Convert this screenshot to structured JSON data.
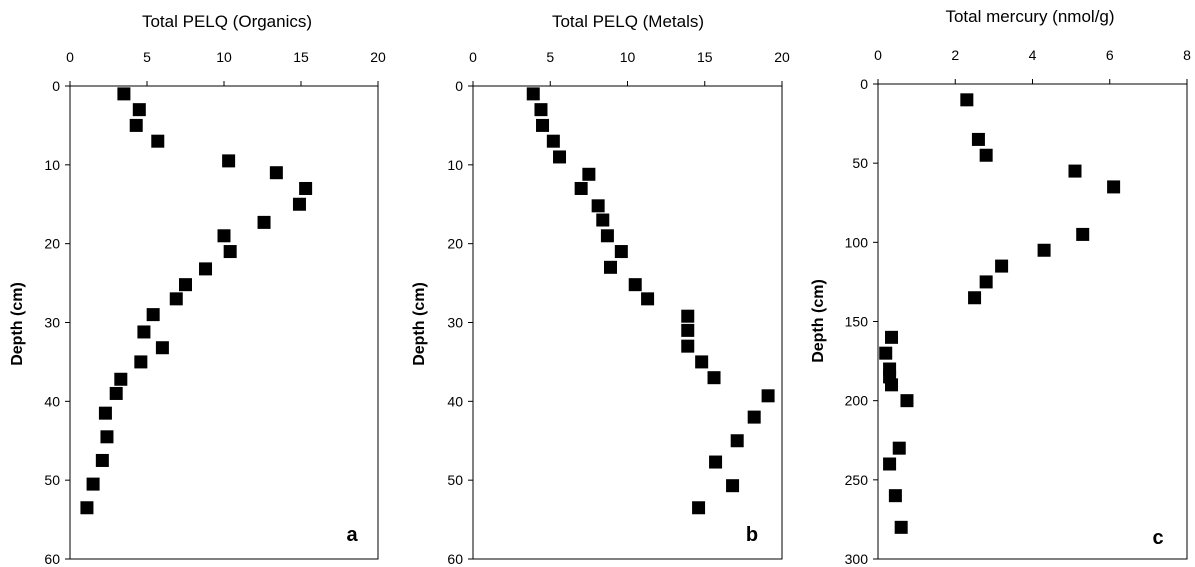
{
  "chart_data": [
    {
      "type": "scatter",
      "panel_label": "a",
      "title": "Total PELQ (Organics)",
      "xlabel": "",
      "ylabel": "Depth (cm)",
      "x_axis_position": "top",
      "y_axis_inverted": true,
      "xlim": [
        0,
        20
      ],
      "ylim": [
        0,
        60
      ],
      "xticks": [
        "0",
        "5",
        "10",
        "15",
        "20"
      ],
      "yticks": [
        "0",
        "10",
        "20",
        "30",
        "40",
        "50",
        "60"
      ],
      "marker": "filled-square",
      "marker_color": "#000000",
      "x": [
        3.5,
        4.5,
        4.3,
        5.7,
        10.3,
        13.4,
        15.3,
        14.9,
        12.6,
        10.0,
        10.4,
        8.8,
        7.5,
        6.9,
        5.4,
        4.8,
        6.0,
        4.6,
        3.3,
        3.0,
        2.3,
        2.4,
        2.1,
        1.5,
        1.1
      ],
      "y": [
        1.0,
        3.0,
        5.0,
        7.0,
        9.5,
        11.0,
        13.0,
        15.0,
        17.3,
        19.0,
        21.0,
        23.2,
        25.2,
        27.0,
        29.0,
        31.2,
        33.2,
        35.0,
        37.2,
        39.0,
        41.5,
        44.5,
        47.5,
        50.5,
        53.5
      ],
      "grid": false,
      "legend": "none"
    },
    {
      "type": "scatter",
      "panel_label": "b",
      "title": "Total PELQ (Metals)",
      "xlabel": "",
      "ylabel": "Depth (cm)",
      "x_axis_position": "top",
      "y_axis_inverted": true,
      "xlim": [
        0,
        20
      ],
      "ylim": [
        0,
        60
      ],
      "xticks": [
        "0",
        "5",
        "10",
        "15",
        "20"
      ],
      "yticks": [
        "0",
        "10",
        "20",
        "30",
        "40",
        "50",
        "60"
      ],
      "marker": "filled-square",
      "marker_color": "#000000",
      "x": [
        3.9,
        4.4,
        4.5,
        5.2,
        5.6,
        7.5,
        7.0,
        8.1,
        8.4,
        8.7,
        9.6,
        8.9,
        10.5,
        11.3,
        13.9,
        13.9,
        13.9,
        14.8,
        15.6,
        19.1,
        18.2,
        17.1,
        15.7,
        16.8,
        14.6
      ],
      "y": [
        1.0,
        3.0,
        5.0,
        7.0,
        9.0,
        11.2,
        13.0,
        15.2,
        17.0,
        19.0,
        21.0,
        23.0,
        25.2,
        27.0,
        29.2,
        31.0,
        33.0,
        35.0,
        37.0,
        39.3,
        42.0,
        45.0,
        47.7,
        50.7,
        53.5
      ],
      "grid": false,
      "legend": "none"
    },
    {
      "type": "scatter",
      "panel_label": "c",
      "title": "Total mercury (nmol/g)",
      "xlabel": "",
      "ylabel": "Depth (cm)",
      "x_axis_position": "top",
      "y_axis_inverted": true,
      "xlim": [
        0,
        8
      ],
      "ylim": [
        0,
        300
      ],
      "xticks": [
        "0",
        "2",
        "4",
        "6",
        "8"
      ],
      "yticks": [
        "0",
        "50",
        "100",
        "150",
        "200",
        "250",
        "300"
      ],
      "marker": "filled-square",
      "marker_color": "#000000",
      "x": [
        2.3,
        2.6,
        2.8,
        5.1,
        6.1,
        5.3,
        4.3,
        3.2,
        2.8,
        2.5,
        0.35,
        0.2,
        0.3,
        0.3,
        0.35,
        0.75,
        0.55,
        0.3,
        0.45,
        0.6
      ],
      "y": [
        10,
        35,
        45,
        55,
        65,
        95,
        105,
        115,
        125,
        135,
        160,
        170,
        180,
        185,
        190,
        200,
        230,
        240,
        260,
        280
      ],
      "grid": false,
      "legend": "none"
    }
  ]
}
